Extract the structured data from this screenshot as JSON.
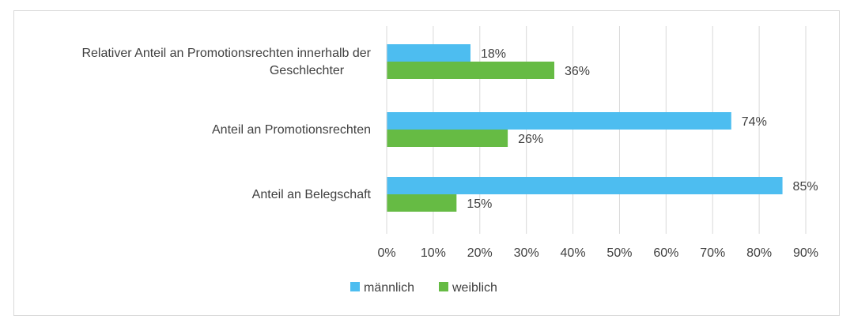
{
  "chart_data": {
    "type": "bar",
    "orientation": "horizontal",
    "categories": [
      [
        "Relativer Anteil an Promotionsrechten innerhalb der",
        "Geschlechter"
      ],
      [
        "Anteil an Promotionsrechten"
      ],
      [
        "Anteil an Belegschaft"
      ]
    ],
    "series": [
      {
        "name": "männlich",
        "color": "#4dbdf0",
        "values": [
          18,
          74,
          85
        ],
        "labels": [
          "18%",
          "74%",
          "85%"
        ]
      },
      {
        "name": "weiblich",
        "color": "#66bb44",
        "values": [
          36,
          26,
          15
        ],
        "labels": [
          "36%",
          "26%",
          "15%"
        ]
      }
    ],
    "xlim": [
      0,
      90
    ],
    "ticks": [
      0,
      10,
      20,
      30,
      40,
      50,
      60,
      70,
      80,
      90
    ],
    "tick_labels": [
      "0%",
      "10%",
      "20%",
      "30%",
      "40%",
      "50%",
      "60%",
      "70%",
      "80%",
      "90%"
    ],
    "grid": "vertical",
    "legend_position": "bottom"
  }
}
